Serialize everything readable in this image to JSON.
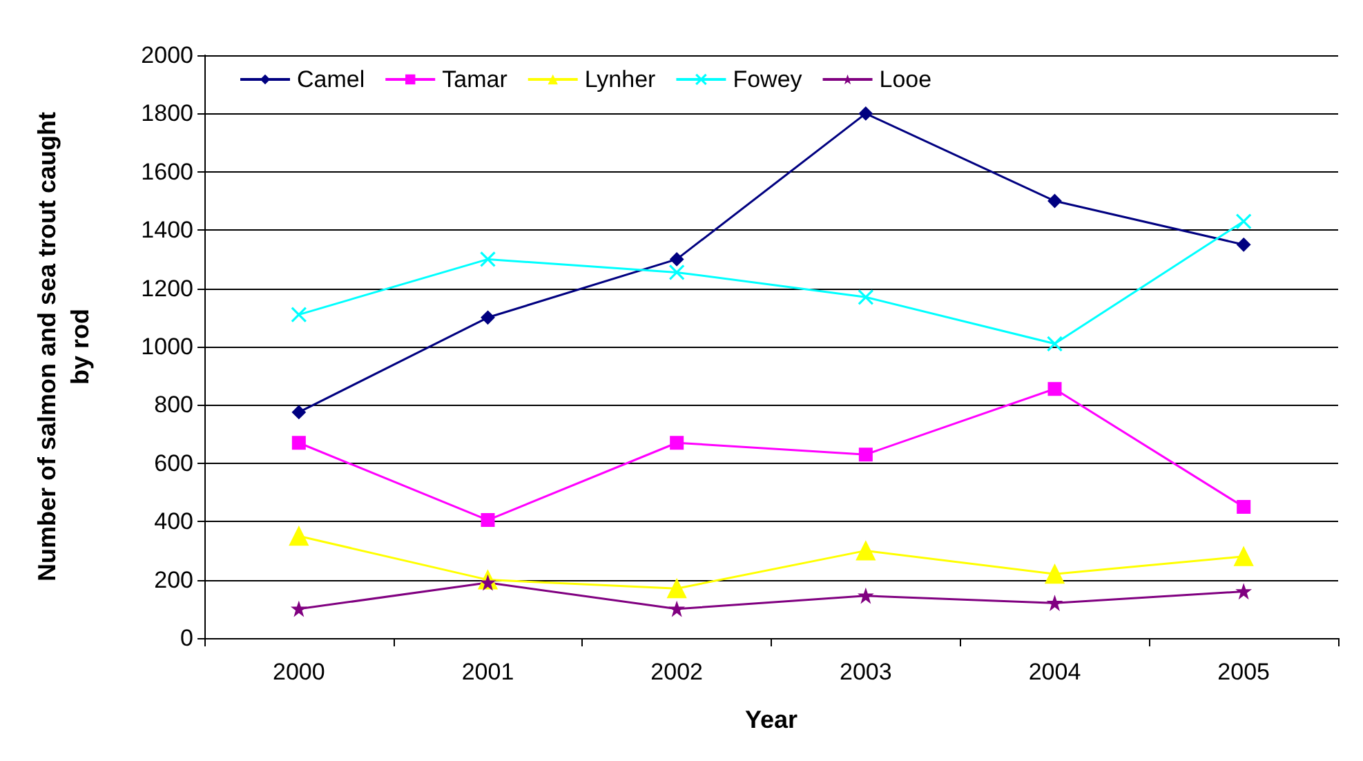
{
  "chart_data": {
    "type": "line",
    "xlabel": "Year",
    "ylabel": "Number of salmon and sea trout caught by rod",
    "categories": [
      "2000",
      "2001",
      "2002",
      "2003",
      "2004",
      "2005"
    ],
    "series": [
      {
        "name": "Camel",
        "color": "#000080",
        "marker": "diamond",
        "values": [
          775,
          1100,
          1300,
          1800,
          1500,
          1350
        ]
      },
      {
        "name": "Tamar",
        "color": "#ff00ff",
        "marker": "square",
        "values": [
          670,
          405,
          670,
          630,
          855,
          450
        ]
      },
      {
        "name": "Lynher",
        "color": "#ffff00",
        "marker": "triangle",
        "values": [
          350,
          200,
          170,
          300,
          220,
          280
        ]
      },
      {
        "name": "Fowey",
        "color": "#00ffff",
        "marker": "cross",
        "values": [
          1110,
          1300,
          1255,
          1170,
          1010,
          1430
        ]
      },
      {
        "name": "Looe",
        "color": "#800080",
        "marker": "star",
        "values": [
          100,
          190,
          100,
          145,
          120,
          160
        ]
      }
    ],
    "ylim": [
      0,
      2000
    ],
    "yticks": [
      0,
      200,
      400,
      600,
      800,
      1000,
      1200,
      1400,
      1600,
      1800,
      2000
    ],
    "grid": "y",
    "legend": "top left"
  }
}
